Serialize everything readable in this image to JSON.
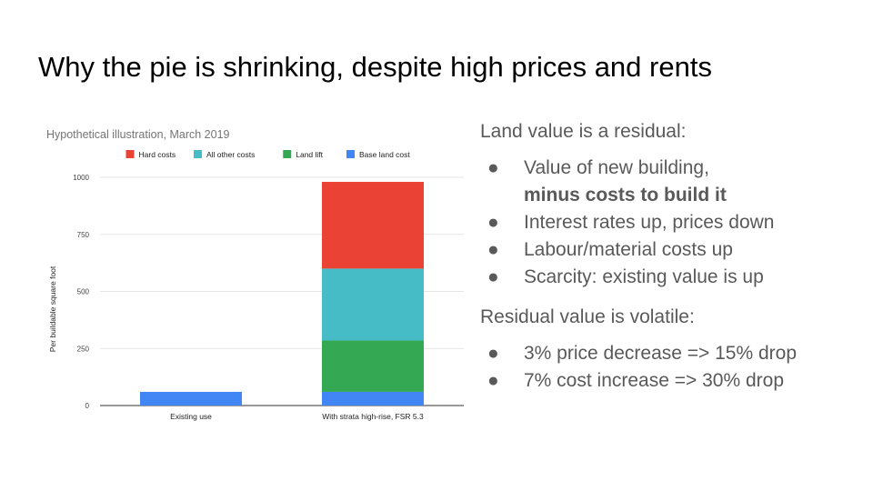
{
  "slide": {
    "title": "Why the pie is shrinking, despite high prices and rents"
  },
  "chart_data": {
    "type": "bar",
    "stacked": true,
    "title": "Hypothetical illustration, March 2019",
    "ylabel": "Per buildable square foot",
    "xlabel": "",
    "categories": [
      "Existing use",
      "With strata high-rise, FSR 5.3"
    ],
    "series": [
      {
        "name": "Base land cost",
        "color": "#4285f4",
        "values": [
          60,
          60
        ]
      },
      {
        "name": "Land lift",
        "color": "#34a853",
        "values": [
          0,
          225
        ]
      },
      {
        "name": "All other costs",
        "color": "#46bdc6",
        "values": [
          0,
          315
        ]
      },
      {
        "name": "Hard costs",
        "color": "#ea4335",
        "values": [
          0,
          380
        ]
      }
    ],
    "legend_order": [
      "Hard costs",
      "All other costs",
      "Land lift",
      "Base land cost"
    ],
    "ylim": [
      0,
      1000
    ],
    "yticks": [
      0,
      250,
      500,
      750,
      1000
    ],
    "legend_position": "top",
    "grid": true
  },
  "text_panel": {
    "heading1": "Land value is a residual:",
    "bullet_glyph": "●",
    "list1": [
      {
        "line1": "Value of new building,",
        "line2": "minus costs to build it"
      },
      {
        "line1": "Interest rates up, prices down"
      },
      {
        "line1": "Labour/material costs up"
      },
      {
        "line1": "Scarcity: existing value is up"
      }
    ],
    "heading2": "Residual value is volatile:",
    "list2": [
      "3% price decrease => 15% drop",
      "7% cost increase => 30% drop"
    ]
  }
}
